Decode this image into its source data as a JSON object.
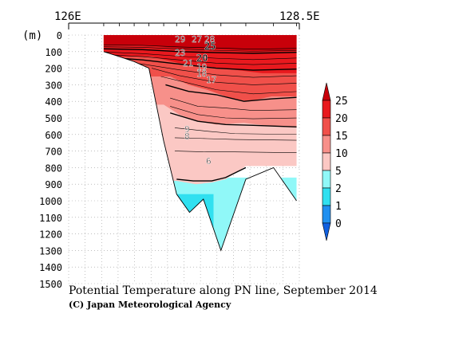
{
  "chart_data": {
    "type": "contour-section",
    "title": "Potential Temperature along PN line, September 2014",
    "credit": "(C) Japan Meteorological Agency",
    "xlabel_left": "126E",
    "xlabel_right": "128.5E",
    "y_unit": "(m)",
    "y_ticks": [
      0,
      100,
      200,
      300,
      400,
      500,
      600,
      700,
      800,
      900,
      1000,
      1100,
      1200,
      1300,
      1400,
      1500
    ],
    "ylim": [
      0,
      1500
    ],
    "x_range_lon": [
      126,
      128.5
    ],
    "grid": "dotted",
    "colorbar": {
      "ticks": [
        "25",
        "20",
        "15",
        "10",
        "5",
        "2",
        "1",
        "0"
      ],
      "bands": [
        {
          "range": "25+",
          "color": "#c8000a"
        },
        {
          "range": "20-25",
          "color": "#e8191e"
        },
        {
          "range": "15-20",
          "color": "#f0504a"
        },
        {
          "range": "10-15",
          "color": "#f7908a"
        },
        {
          "range": "5-10",
          "color": "#fbc8c4"
        },
        {
          "range": "2-5",
          "color": "#90f8f8"
        },
        {
          "range": "1-2",
          "color": "#30e0f0"
        },
        {
          "range": "0-1",
          "color": "#2090f0"
        },
        {
          "range": "<0",
          "color": "#1060e0"
        }
      ]
    },
    "contour_labels": [
      "29",
      "27",
      "28",
      "25",
      "23",
      "21",
      "20",
      "19",
      "18",
      "17",
      "9",
      "8",
      "6"
    ],
    "bottom_profile": [
      {
        "lon": 126.38,
        "depth": 100
      },
      {
        "lon": 126.55,
        "depth": 130
      },
      {
        "lon": 126.71,
        "depth": 160
      },
      {
        "lon": 126.87,
        "depth": 200
      },
      {
        "lon": 127.03,
        "depth": 640
      },
      {
        "lon": 127.17,
        "depth": 960
      },
      {
        "lon": 127.31,
        "depth": 1070
      },
      {
        "lon": 127.46,
        "depth": 990
      },
      {
        "lon": 127.65,
        "depth": 1300
      },
      {
        "lon": 127.92,
        "depth": 870
      },
      {
        "lon": 128.22,
        "depth": 800
      },
      {
        "lon": 128.47,
        "depth": 1000
      }
    ],
    "station_lons": [
      126.38,
      126.55,
      126.71,
      126.87,
      127.03,
      127.17,
      127.31,
      127.46,
      127.65,
      127.92,
      128.22,
      128.47
    ]
  }
}
